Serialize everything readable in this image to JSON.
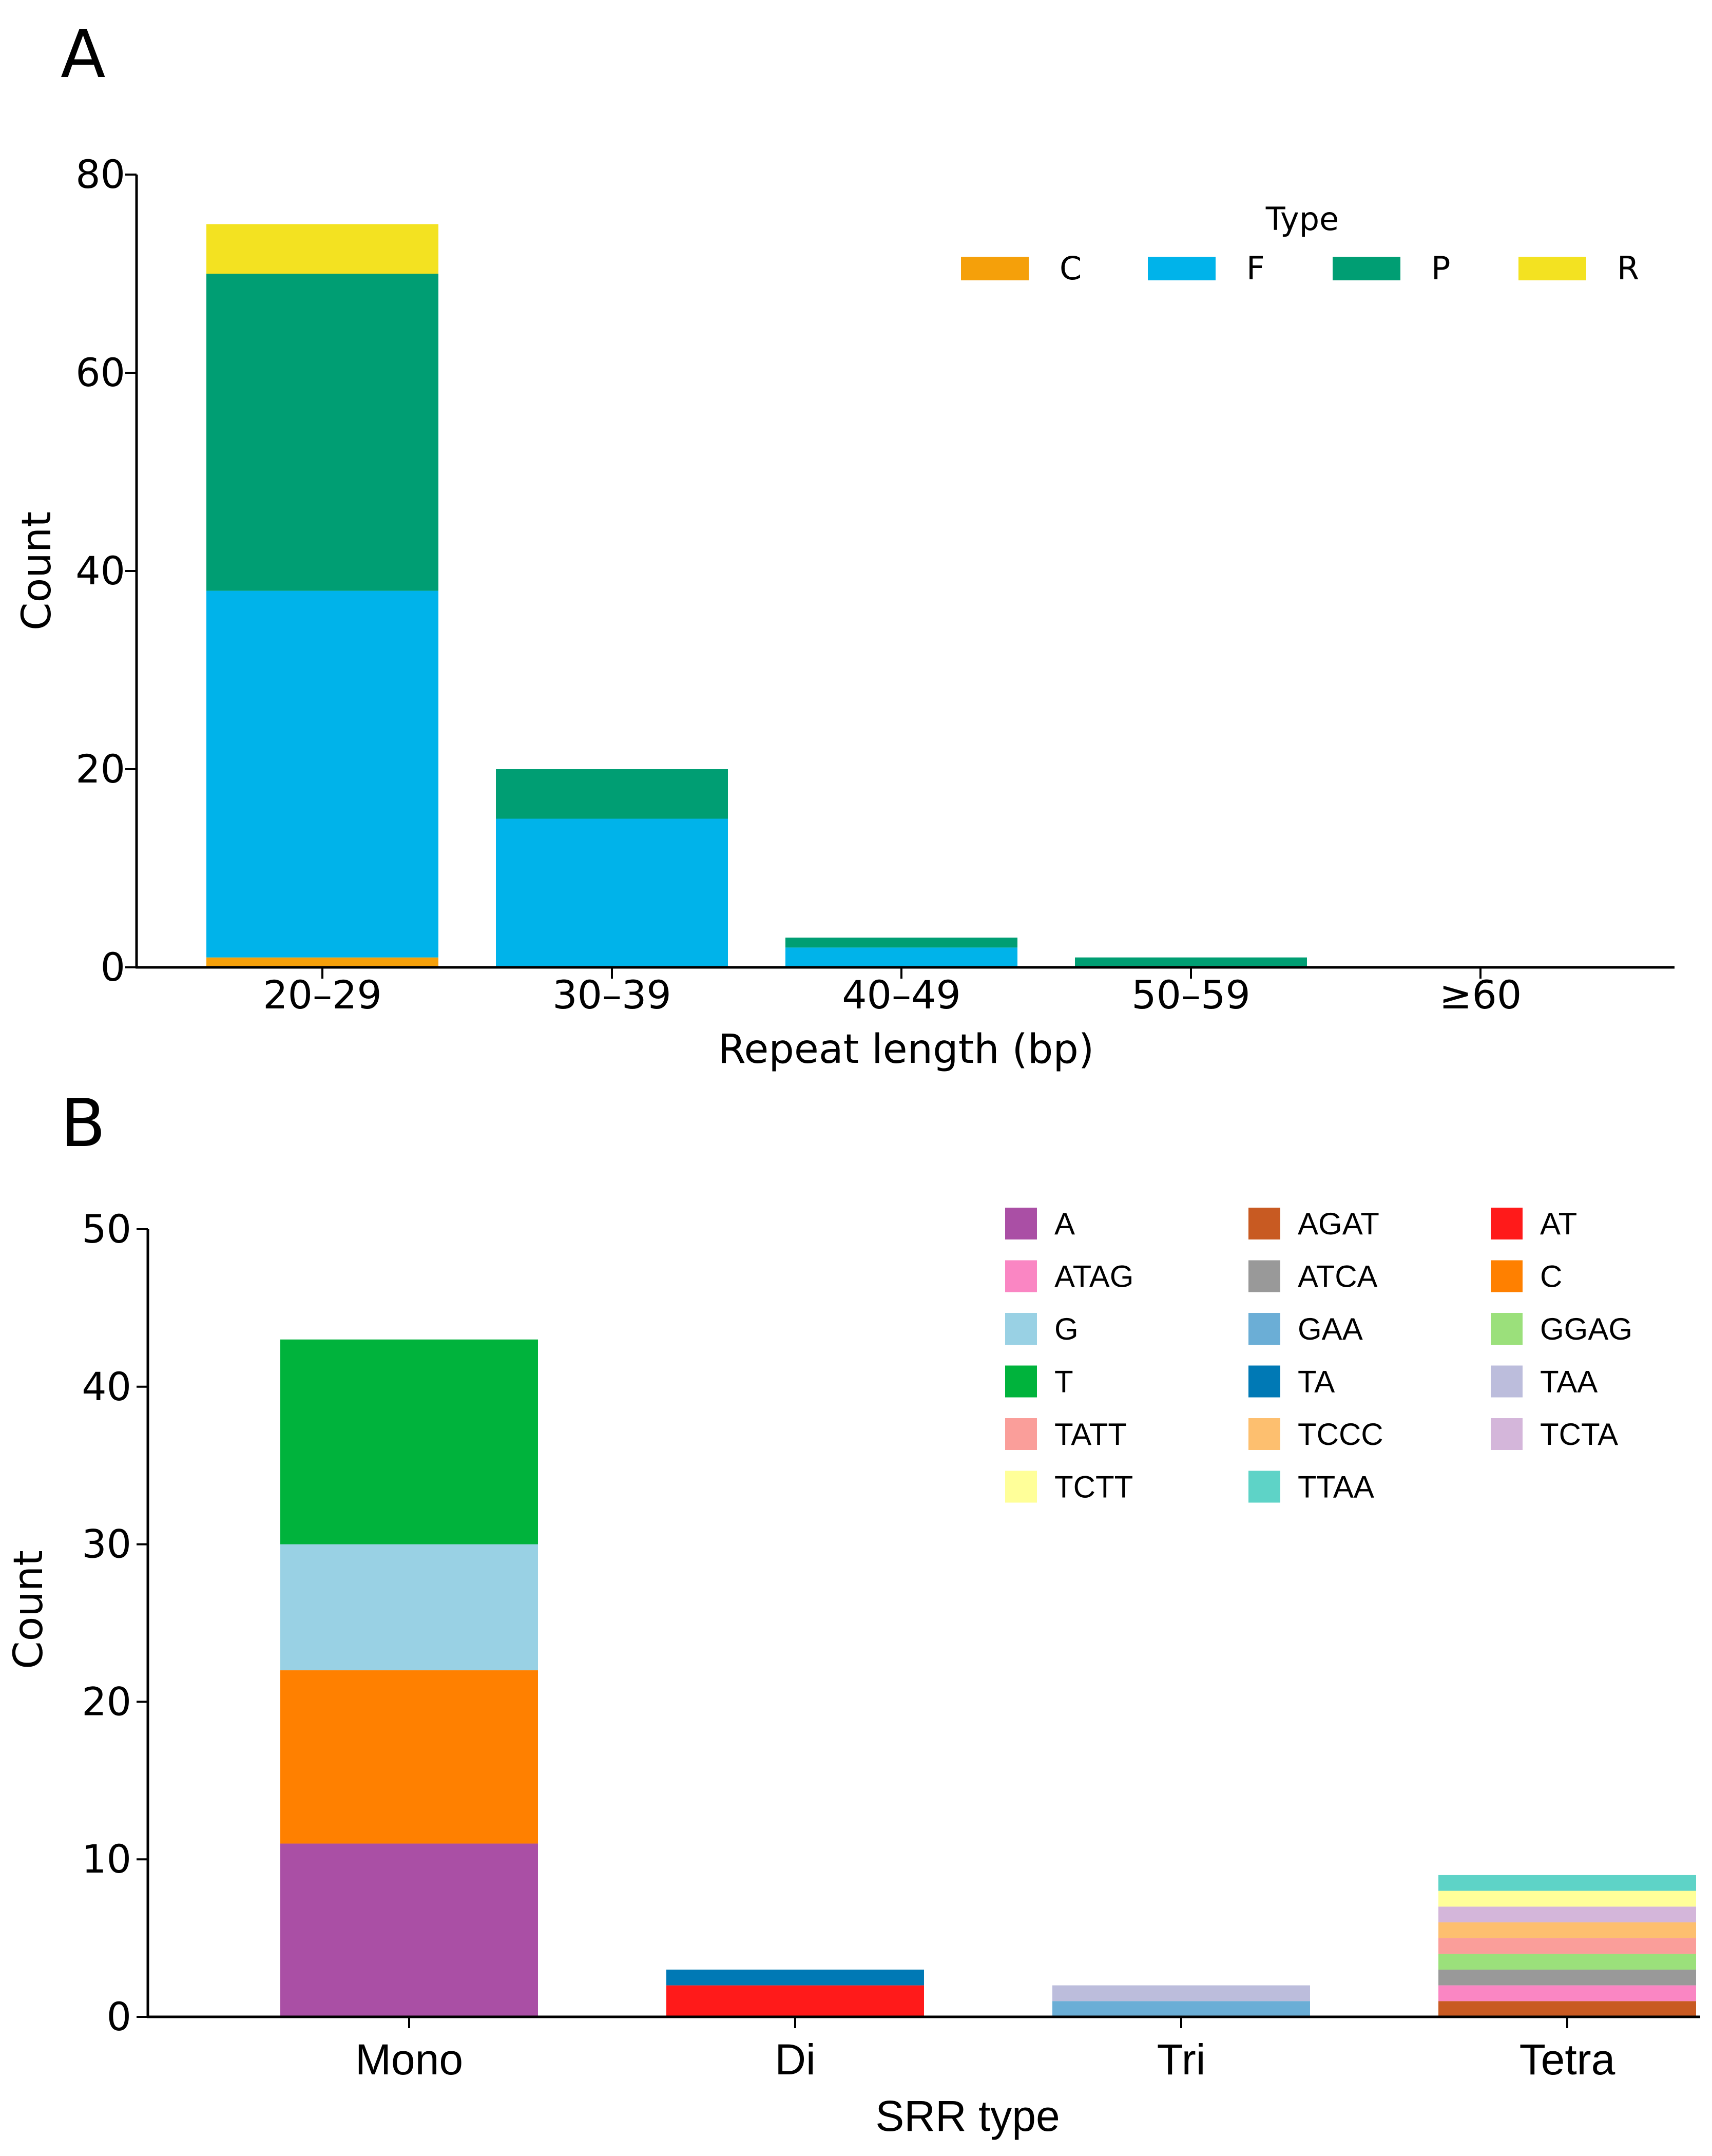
{
  "chart_data": [
    {
      "panel_label": "A",
      "type": "bar",
      "stacked": true,
      "categories": [
        "20–29",
        "30–39",
        "40–49",
        "50–59",
        "≥60"
      ],
      "series": [
        {
          "name": "C",
          "color": "#F5A00A",
          "values": [
            1,
            0,
            0,
            0,
            0
          ]
        },
        {
          "name": "F",
          "color": "#00B3EA",
          "values": [
            37,
            15,
            2,
            0,
            0
          ]
        },
        {
          "name": "P",
          "color": "#009E73",
          "values": [
            32,
            5,
            1,
            1,
            0
          ]
        },
        {
          "name": "R",
          "color": "#F3E221",
          "values": [
            5,
            0,
            0,
            0,
            0
          ]
        }
      ],
      "xlabel": "Repeat length (bp)",
      "ylabel": "Count",
      "ylim": [
        0,
        80
      ],
      "yticks": [
        "0",
        "20",
        "40",
        "60",
        "80"
      ],
      "legend_title": "Type",
      "legend_position": "top-right",
      "grid": false
    },
    {
      "panel_label": "B",
      "type": "bar",
      "stacked": true,
      "categories": [
        "Mono",
        "Di",
        "Tri",
        "Tetra"
      ],
      "series": [
        {
          "name": "A",
          "color": "#AA4FA5",
          "values": [
            11,
            0,
            0,
            0
          ]
        },
        {
          "name": "AGAT",
          "color": "#C85A22",
          "values": [
            0,
            0,
            0,
            1
          ]
        },
        {
          "name": "AT",
          "color": "#FF1A1A",
          "values": [
            0,
            2,
            0,
            0
          ]
        },
        {
          "name": "ATAG",
          "color": "#FA86C3",
          "values": [
            0,
            0,
            0,
            1
          ]
        },
        {
          "name": "ATCA",
          "color": "#999999",
          "values": [
            0,
            0,
            0,
            1
          ]
        },
        {
          "name": "C",
          "color": "#FF8000",
          "values": [
            11,
            0,
            0,
            0
          ]
        },
        {
          "name": "G",
          "color": "#99D1E4",
          "values": [
            8,
            0,
            0,
            0
          ]
        },
        {
          "name": "GAA",
          "color": "#6BAED6",
          "values": [
            0,
            0,
            1,
            0
          ]
        },
        {
          "name": "GGAG",
          "color": "#9BE07B",
          "values": [
            0,
            0,
            0,
            1
          ]
        },
        {
          "name": "T",
          "color": "#00B33C",
          "values": [
            13,
            0,
            0,
            0
          ]
        },
        {
          "name": "TA",
          "color": "#0079B5",
          "values": [
            0,
            1,
            0,
            0
          ]
        },
        {
          "name": "TAA",
          "color": "#BCBDDC",
          "values": [
            0,
            0,
            1,
            0
          ]
        },
        {
          "name": "TATT",
          "color": "#FA9E9A",
          "values": [
            0,
            0,
            0,
            1
          ]
        },
        {
          "name": "TCCC",
          "color": "#FDBF6F",
          "values": [
            0,
            0,
            0,
            1
          ]
        },
        {
          "name": "TCTA",
          "color": "#D4B6DA",
          "values": [
            0,
            0,
            0,
            1
          ]
        },
        {
          "name": "TCTT",
          "color": "#FFFF99",
          "values": [
            0,
            0,
            0,
            1
          ]
        },
        {
          "name": "TTAA",
          "color": "#5ED3C7",
          "values": [
            0,
            0,
            0,
            1
          ]
        }
      ],
      "xlabel": "SRR type",
      "ylabel": "Count",
      "ylim": [
        0,
        50
      ],
      "yticks": [
        "0",
        "10",
        "20",
        "30",
        "40",
        "50"
      ],
      "legend_position": "top-right",
      "grid": false
    }
  ]
}
